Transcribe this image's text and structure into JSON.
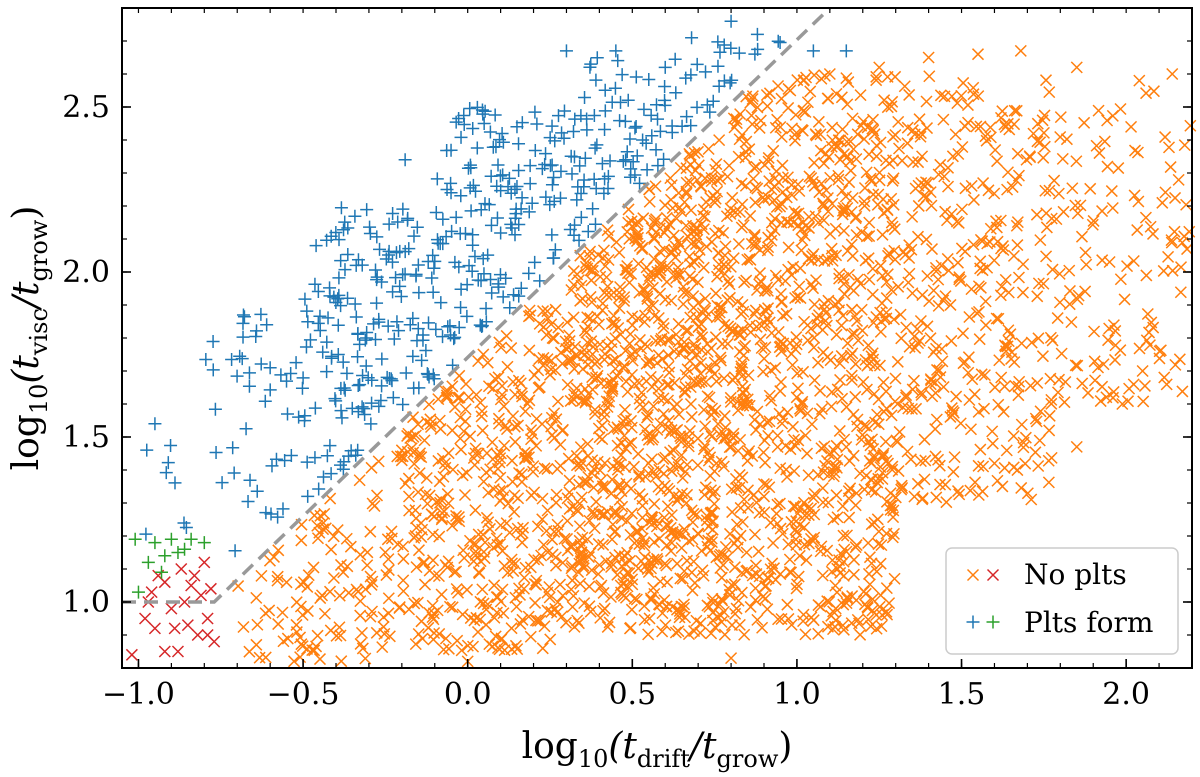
{
  "chart_data": {
    "type": "scatter",
    "xlabel": {
      "prefix": "log",
      "base": "10",
      "open": "(t",
      "num_sub": "drift",
      "slash": "/t",
      "den_sub": "grow",
      "close": ")"
    },
    "ylabel": {
      "prefix": "log",
      "base": "10",
      "open": "(t",
      "num_sub": "visc",
      "slash": "/t",
      "den_sub": "grow",
      "close": ")"
    },
    "xlim": [
      -1.05,
      2.2
    ],
    "ylim": [
      0.8,
      2.8
    ],
    "xticks": [
      -1.0,
      -0.5,
      0.0,
      0.5,
      1.0,
      1.5,
      2.0
    ],
    "xtick_labels": [
      "−1.0",
      "−0.5",
      "0.0",
      "0.5",
      "1.0",
      "1.5",
      "2.0"
    ],
    "yticks": [
      1.0,
      1.5,
      2.0,
      2.5
    ],
    "ytick_labels": [
      "1.0",
      "1.5",
      "2.0",
      "2.5"
    ],
    "grid": false,
    "legend": {
      "position": "bottom-right",
      "entries": [
        {
          "label": "No plts",
          "markers": [
            {
              "symbol": "x",
              "color": "#ff7f0e"
            },
            {
              "symbol": "x",
              "color": "#d62728"
            }
          ]
        },
        {
          "label": "Plts form",
          "markers": [
            {
              "symbol": "+",
              "color": "#1f77b4"
            },
            {
              "symbol": "+",
              "color": "#2ca02c"
            }
          ]
        }
      ]
    },
    "boundary_line": {
      "style": "dashed",
      "color": "#999999",
      "points": [
        [
          -1.05,
          1.0
        ],
        [
          -0.77,
          1.0
        ],
        [
          1.1,
          2.8
        ]
      ]
    },
    "series": [
      {
        "marker": "x",
        "color": "#d62728",
        "points": [
          [
            -1.02,
            0.84
          ],
          [
            -0.98,
            0.95
          ],
          [
            -0.96,
            1.03
          ],
          [
            -0.95,
            0.92
          ],
          [
            -0.92,
            1.06
          ],
          [
            -0.92,
            0.85
          ],
          [
            -0.9,
            0.98
          ],
          [
            -0.88,
            0.85
          ],
          [
            -0.87,
            1.1
          ],
          [
            -0.86,
            1.0
          ],
          [
            -0.85,
            0.93
          ],
          [
            -0.83,
            1.08
          ],
          [
            -0.82,
            0.9
          ],
          [
            -0.8,
            1.12
          ],
          [
            -0.79,
            0.95
          ],
          [
            -0.78,
            1.04
          ],
          [
            -0.77,
            0.88
          ],
          [
            -0.81,
            1.02
          ],
          [
            -0.94,
            1.08
          ],
          [
            -0.97,
            1.0
          ],
          [
            -0.89,
            0.92
          ],
          [
            -0.84,
            1.05
          ],
          [
            -0.79,
            0.9
          ]
        ]
      },
      {
        "marker": "+",
        "color": "#2ca02c",
        "points": [
          [
            -1.01,
            1.19
          ],
          [
            -1.0,
            1.03
          ],
          [
            -0.97,
            1.12
          ],
          [
            -0.95,
            1.18
          ],
          [
            -0.93,
            1.09
          ],
          [
            -0.9,
            1.19
          ],
          [
            -0.88,
            1.15
          ],
          [
            -0.86,
            1.16
          ],
          [
            -0.84,
            1.19
          ],
          [
            -0.8,
            1.18
          ],
          [
            -0.92,
            1.14
          ]
        ]
      },
      {
        "marker": "+",
        "color": "#1f77b4",
        "density": [
          {
            "x": [
              -0.98,
              -0.85
            ],
            "y": [
              1.2,
              1.55
            ],
            "n": 8
          },
          {
            "x": [
              -0.8,
              -0.5
            ],
            "y": [
              1.15,
              1.9
            ],
            "n": 45
          },
          {
            "x": [
              -0.5,
              -0.1
            ],
            "y": [
              1.25,
              2.2
            ],
            "n": 170
          },
          {
            "x": [
              -0.1,
              0.3
            ],
            "y": [
              1.55,
              2.5
            ],
            "n": 150
          },
          {
            "x": [
              0.3,
              0.7
            ],
            "y": [
              1.95,
              2.65
            ],
            "n": 90
          },
          {
            "x": [
              0.7,
              1.1
            ],
            "y": [
              2.4,
              2.7
            ],
            "n": 18
          }
        ],
        "points": [
          [
            -0.95,
            1.54
          ],
          [
            -0.6,
            1.71
          ],
          [
            -0.19,
            2.34
          ],
          [
            0.05,
            2.45
          ],
          [
            0.3,
            2.67
          ],
          [
            0.45,
            2.67
          ],
          [
            0.6,
            2.62
          ],
          [
            0.68,
            2.71
          ],
          [
            0.8,
            2.76
          ],
          [
            0.88,
            2.72
          ],
          [
            1.05,
            2.67
          ],
          [
            1.15,
            2.67
          ]
        ]
      },
      {
        "marker": "x",
        "color": "#ff7f0e",
        "density": [
          {
            "x": [
              -0.7,
              -0.2
            ],
            "y": [
              0.82,
              1.45
            ],
            "n": 120
          },
          {
            "x": [
              -0.2,
              0.3
            ],
            "y": [
              0.85,
              1.9
            ],
            "n": 400
          },
          {
            "x": [
              0.3,
              0.8
            ],
            "y": [
              0.9,
              2.4
            ],
            "n": 850
          },
          {
            "x": [
              0.8,
              1.3
            ],
            "y": [
              0.9,
              2.6
            ],
            "n": 800
          },
          {
            "x": [
              1.3,
              1.8
            ],
            "y": [
              1.3,
              2.6
            ],
            "n": 350
          },
          {
            "x": [
              1.8,
              2.2
            ],
            "y": [
              1.6,
              2.55
            ],
            "n": 120
          }
        ],
        "points": [
          [
            0.98,
            2.55
          ],
          [
            1.1,
            2.6
          ],
          [
            1.25,
            2.62
          ],
          [
            1.4,
            2.65
          ],
          [
            1.55,
            2.66
          ],
          [
            1.68,
            2.67
          ],
          [
            1.85,
            2.62
          ],
          [
            2.04,
            2.58
          ],
          [
            2.14,
            2.6
          ],
          [
            1.6,
            1.42
          ],
          [
            1.85,
            1.47
          ],
          [
            2.05,
            1.7
          ],
          [
            0.8,
            0.83
          ],
          [
            0.0,
            0.82
          ]
        ]
      }
    ]
  }
}
